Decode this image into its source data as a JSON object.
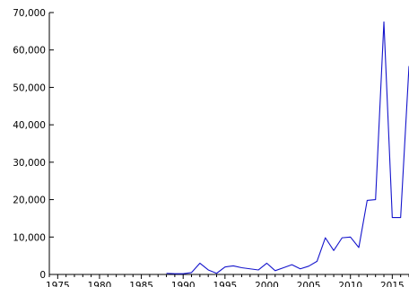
{
  "chart_data": {
    "type": "line",
    "title": "",
    "xlabel": "",
    "ylabel": "",
    "xlim": [
      1974,
      2017
    ],
    "ylim": [
      0,
      70000
    ],
    "grid": false,
    "legend": "none",
    "y_ticks": [
      0,
      10000,
      20000,
      30000,
      40000,
      50000,
      60000,
      70000
    ],
    "y_tick_labels": [
      "0",
      "10,000",
      "20,000",
      "30,000",
      "40,000",
      "50,000",
      "60,000",
      "70,000"
    ],
    "x_ticks": [
      1975,
      1980,
      1985,
      1990,
      1995,
      2000,
      2005,
      2010,
      2015
    ],
    "x_tick_labels": [
      "1975",
      "1980",
      "1985",
      "1990",
      "1995",
      "2000",
      "2005",
      "2010",
      "2015"
    ],
    "series": [
      {
        "color": "#1414cc",
        "x": [
          1988,
          1989,
          1990,
          1991,
          1992,
          1993,
          1994,
          1995,
          1996,
          1997,
          1998,
          1999,
          2000,
          2001,
          2002,
          2003,
          2004,
          2005,
          2006,
          2007,
          2008,
          2009,
          2010,
          2011,
          2012,
          2013,
          2014,
          2015,
          2016,
          2017
        ],
        "y": [
          300,
          200,
          200,
          500,
          3000,
          1200,
          300,
          2000,
          2300,
          1800,
          1500,
          1200,
          3000,
          1000,
          1800,
          2600,
          1500,
          2200,
          3500,
          9800,
          6400,
          9800,
          10000,
          7200,
          19800,
          20000,
          67500,
          15200,
          15200,
          55700
        ]
      }
    ]
  }
}
